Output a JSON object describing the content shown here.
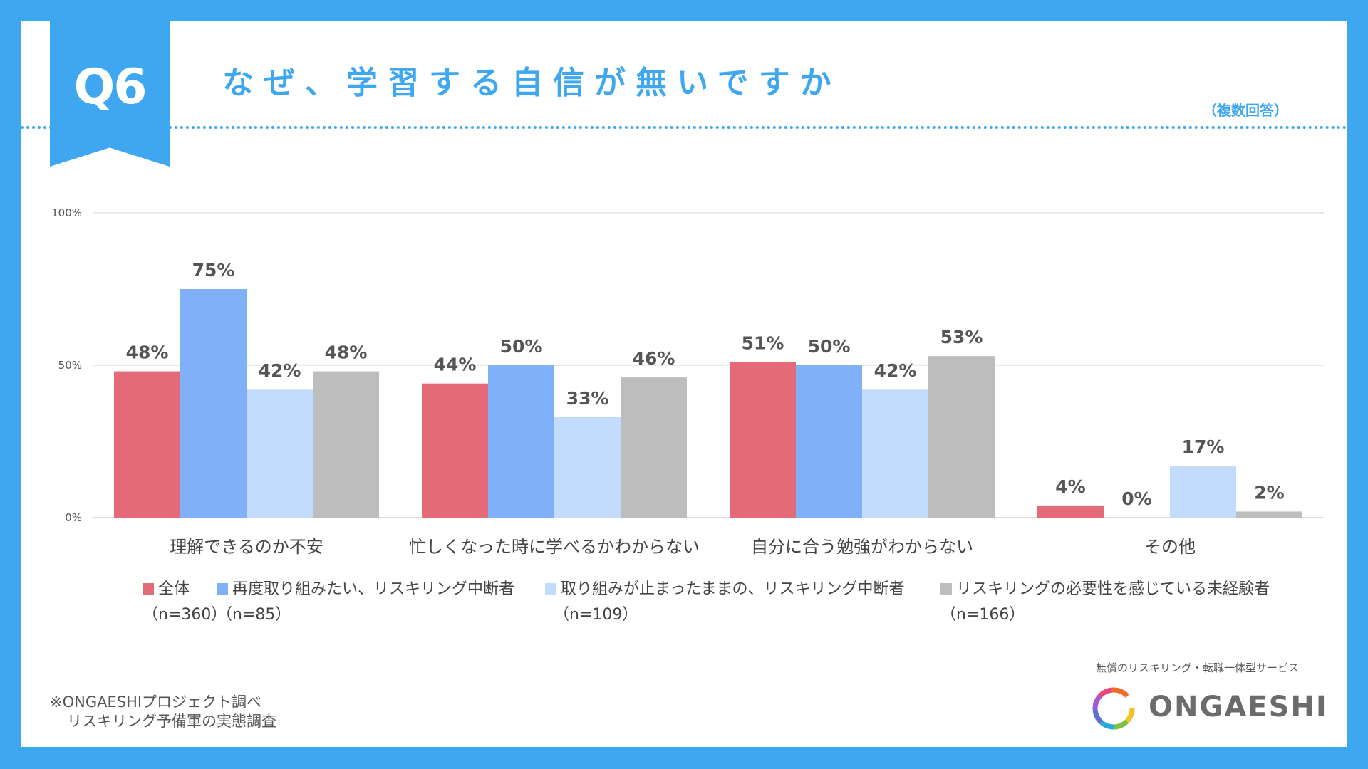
{
  "header": {
    "badge": "Q6",
    "title": "なぜ、学習する自信が無いですか",
    "note": "（複数回答）",
    "accent_color": "#3fa7f0"
  },
  "chart_data": {
    "type": "bar",
    "title": "なぜ、学習する自信が無いですか",
    "categories": [
      "理解できるのか不安",
      "忙しくなった時に学べるかわからない",
      "自分に合う勉強がわからない",
      "その他"
    ],
    "series": [
      {
        "name": "全体",
        "n": "（n=360）",
        "values": [
          48,
          44,
          51,
          4
        ],
        "color": "#e36a76"
      },
      {
        "name": "再度取り組みたい、リスキリング中断者",
        "n": "（n=85）",
        "values": [
          75,
          50,
          50,
          0
        ],
        "color": "#7fb0f8"
      },
      {
        "name": "取り組みが止まったままの、リスキリング中断者",
        "n": "（n=109）",
        "values": [
          42,
          33,
          42,
          17
        ],
        "color": "#c3dbfd"
      },
      {
        "name": "リスキリングの必要性を感じている未経験者",
        "n": "（n=166）",
        "values": [
          48,
          46,
          53,
          2
        ],
        "color": "#bdbdbd"
      }
    ],
    "y_ticks": [
      "0%",
      "50%",
      "100%"
    ],
    "ylim": [
      0,
      100
    ],
    "value_suffix": "%",
    "grid": true,
    "legend_position": "bottom"
  },
  "footer": {
    "source_line1": "※ONGAESHIプロジェクト調べ",
    "source_line2": "リスキリング予備軍の実態調査",
    "tagline": "無償のリスキリング・転職一体型サービス",
    "brand": "ONGAESHI"
  }
}
